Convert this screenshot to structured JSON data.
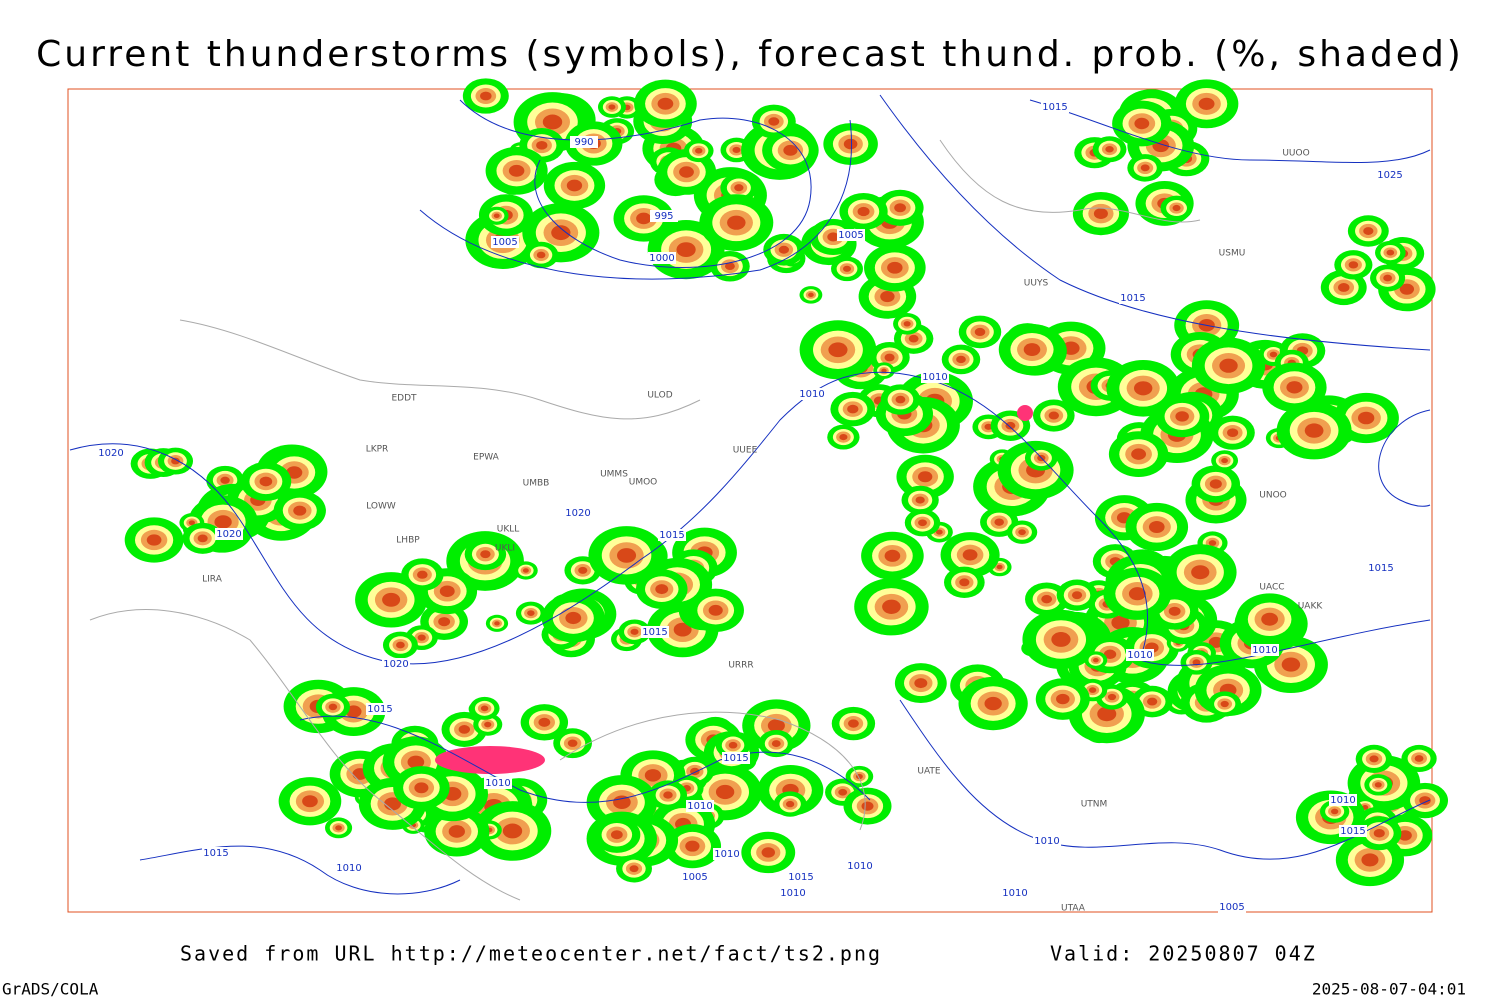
{
  "header": {
    "title": "Current thunderstorms (symbols), forecast thund. prob. (%, shaded)"
  },
  "isobar_labels": [
    990,
    995,
    1000,
    1005,
    1005,
    1015,
    1025,
    1015,
    1010,
    1010,
    1020,
    1020,
    1020,
    1015,
    1015,
    1020,
    1015,
    1010,
    1015,
    1010,
    1010,
    1005,
    1015,
    1010,
    1010,
    1010,
    1010,
    1015,
    1015,
    1010,
    1010,
    1010,
    1005,
    1010,
    1015
  ],
  "stations": [
    "EDDT",
    "EPWA",
    "UMMS",
    "UMOO",
    "UMBB",
    "UKLL",
    "UKLI",
    "LKPR",
    "LOWW",
    "LHBP",
    "LIRA",
    "UUYS",
    "USMU",
    "UUOO",
    "ULOD",
    "UUEE",
    "URRR",
    "UACC",
    "UAKK",
    "UNOO",
    "UATE",
    "UTNM",
    "UTAA"
  ],
  "footer": {
    "source": "Saved from URL http://meteocenter.net/fact/ts2.png",
    "valid": "Valid: 20250807 04Z",
    "software": "GrADS/COLA",
    "timestamp": "2025-08-07-04:01"
  }
}
